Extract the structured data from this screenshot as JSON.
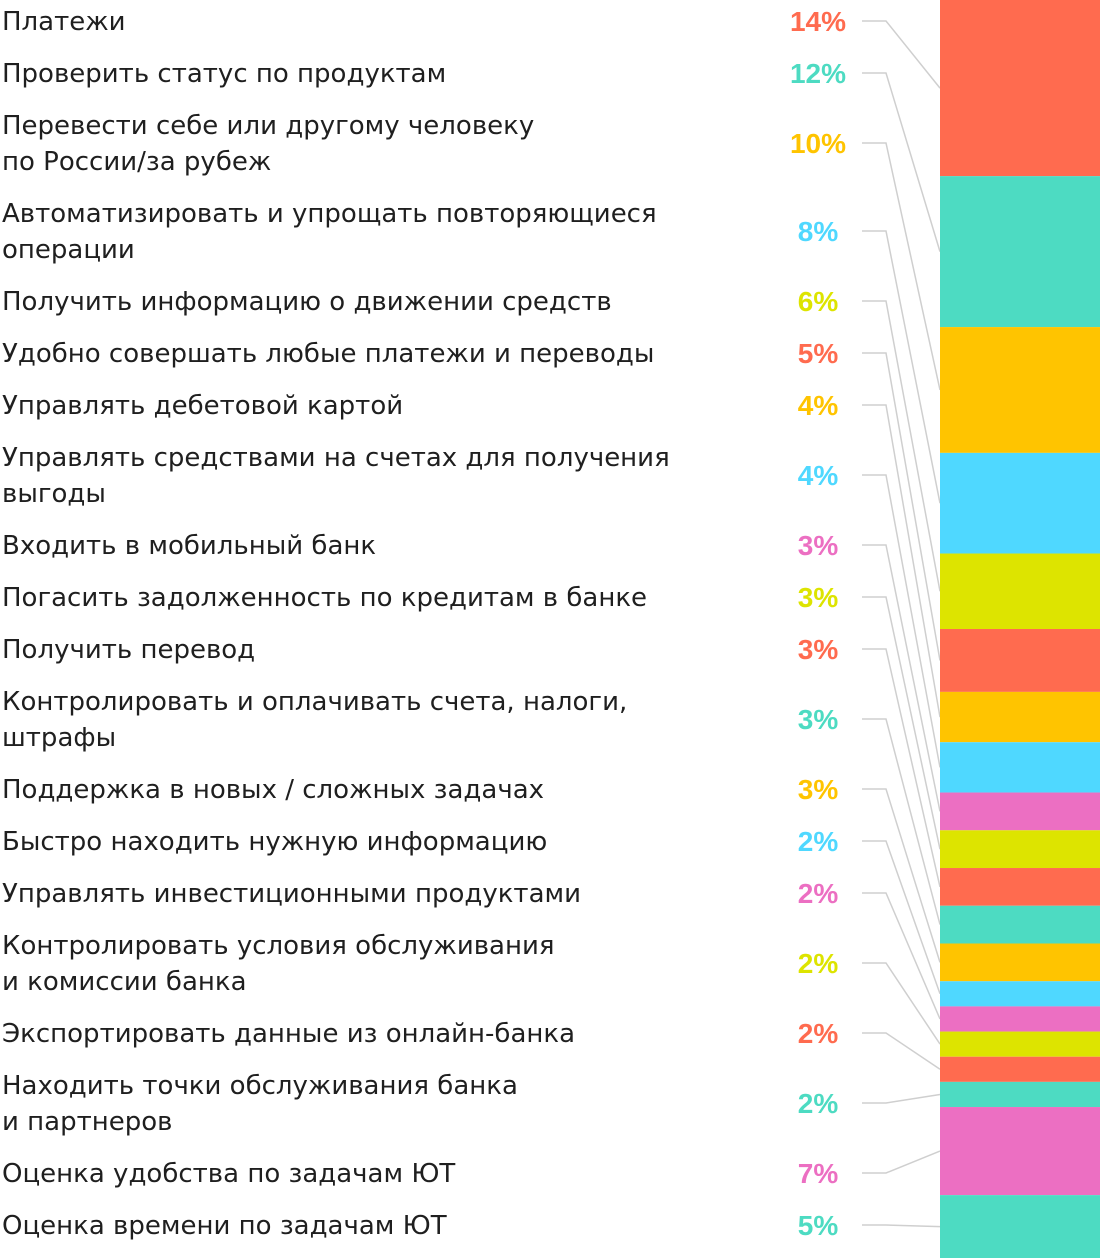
{
  "chart_data": {
    "type": "bar",
    "orientation": "stacked-single-column",
    "legend": "left",
    "grid": false,
    "unit": "%",
    "items": [
      {
        "label": [
          "Платежи"
        ],
        "value_text": "14%",
        "value": 14,
        "color": "#FF6B4F"
      },
      {
        "label": [
          "Проверить статус по продуктам"
        ],
        "value_text": "12%",
        "value": 12,
        "color": "#4DDBC2"
      },
      {
        "label": [
          "Перевести себе или другому человеку",
          "по России/за рубеж"
        ],
        "value_text": "10%",
        "value": 10,
        "color": "#FFC400"
      },
      {
        "label": [
          "Автоматизировать и упрощать повторяющиеся",
          "операции"
        ],
        "value_text": "8%",
        "value": 8,
        "color": "#4FD8FF"
      },
      {
        "label": [
          "Получить информацию о движении средств"
        ],
        "value_text": "6%",
        "value": 6,
        "color": "#DDE400"
      },
      {
        "label": [
          "Удобно совершать любые платежи и переводы"
        ],
        "value_text": "5%",
        "value": 5,
        "color": "#FF6B4F"
      },
      {
        "label": [
          "Управлять дебетовой картой"
        ],
        "value_text": "4%",
        "value": 4,
        "color": "#FFC400"
      },
      {
        "label": [
          "Управлять средствами на счетах для получения",
          "выгоды"
        ],
        "value_text": "4%",
        "value": 4,
        "color": "#4FD8FF"
      },
      {
        "label": [
          "Входить в мобильный банк"
        ],
        "value_text": "3%",
        "value": 3,
        "color": "#EC6FC2"
      },
      {
        "label": [
          "Погасить задолженность по кредитам в банке"
        ],
        "value_text": "3%",
        "value": 3,
        "color": "#DDE400"
      },
      {
        "label": [
          "Получить перевод"
        ],
        "value_text": "3%",
        "value": 3,
        "color": "#FF6B4F"
      },
      {
        "label": [
          "Контролировать и оплачивать счета, налоги,",
          "штрафы"
        ],
        "value_text": "3%",
        "value": 3,
        "color": "#4DDBC2"
      },
      {
        "label": [
          "Поддержка в новых / сложных задачах"
        ],
        "value_text": "3%",
        "value": 3,
        "color": "#FFC400"
      },
      {
        "label": [
          "Быстро находить нужную информацию"
        ],
        "value_text": "2%",
        "value": 2,
        "color": "#4FD8FF"
      },
      {
        "label": [
          "Управлять инвестиционными продуктами"
        ],
        "value_text": "2%",
        "value": 2,
        "color": "#EC6FC2"
      },
      {
        "label": [
          "Контролировать условия обслуживания",
          "и комиссии банка"
        ],
        "value_text": "2%",
        "value": 2,
        "color": "#DDE400"
      },
      {
        "label": [
          "Экспортировать данные из онлайн-банка"
        ],
        "value_text": "2%",
        "value": 2,
        "color": "#FF6B4F"
      },
      {
        "label": [
          "Находить точки обслуживания банка",
          "и партнеров"
        ],
        "value_text": "2%",
        "value": 2,
        "color": "#4DDBC2"
      },
      {
        "label": [
          "Оценка удобства по задачам ЮТ"
        ],
        "value_text": "7%",
        "value": 7,
        "color": "#EC6FC2"
      },
      {
        "label": [
          "Оценка времени по задачам ЮТ"
        ],
        "value_text": "5%",
        "value": 5,
        "color": "#4DDBC2"
      }
    ],
    "connector_color": "#cfcfcf"
  }
}
